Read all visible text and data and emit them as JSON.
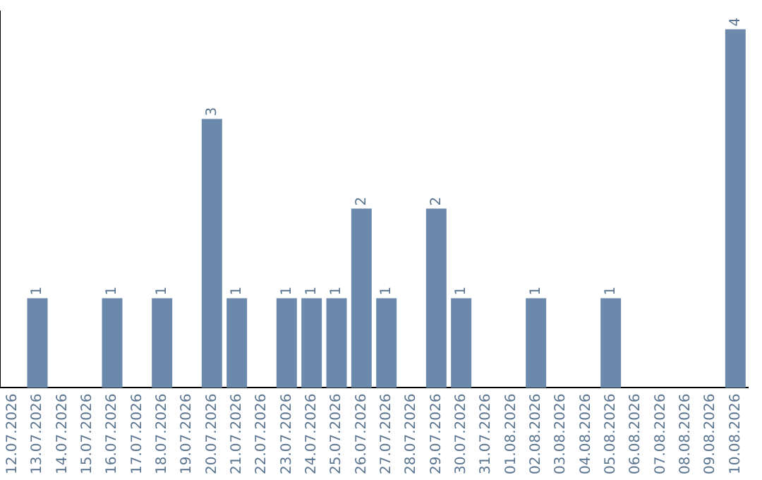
{
  "chart_data": {
    "type": "bar",
    "categories": [
      "12.07.2026",
      "13.07.2026",
      "14.07.2026",
      "15.07.2026",
      "16.07.2026",
      "17.07.2026",
      "18.07.2026",
      "19.07.2026",
      "20.07.2026",
      "21.07.2026",
      "22.07.2026",
      "23.07.2026",
      "24.07.2026",
      "25.07.2026",
      "26.07.2026",
      "27.07.2026",
      "28.07.2026",
      "29.07.2026",
      "30.07.2026",
      "31.07.2026",
      "01.08.2026",
      "02.08.2026",
      "03.08.2026",
      "04.08.2026",
      "05.08.2026",
      "06.08.2026",
      "07.08.2026",
      "08.08.2026",
      "09.08.2026",
      "10.08.2026"
    ],
    "values": [
      0,
      1,
      0,
      0,
      1,
      0,
      1,
      0,
      3,
      1,
      0,
      1,
      1,
      1,
      2,
      1,
      0,
      2,
      1,
      0,
      0,
      1,
      0,
      0,
      1,
      0,
      0,
      0,
      0,
      4
    ],
    "value_labels": [
      null,
      "1",
      null,
      null,
      "1",
      null,
      "1",
      null,
      "3",
      "1",
      null,
      "1",
      "1",
      "1",
      "2",
      "1",
      null,
      "2",
      "1",
      null,
      null,
      "1",
      null,
      null,
      "1",
      null,
      null,
      null,
      null,
      "4"
    ],
    "color": "#6b8aab",
    "tick_labels": "x",
    "grid": false,
    "legend": false
  }
}
